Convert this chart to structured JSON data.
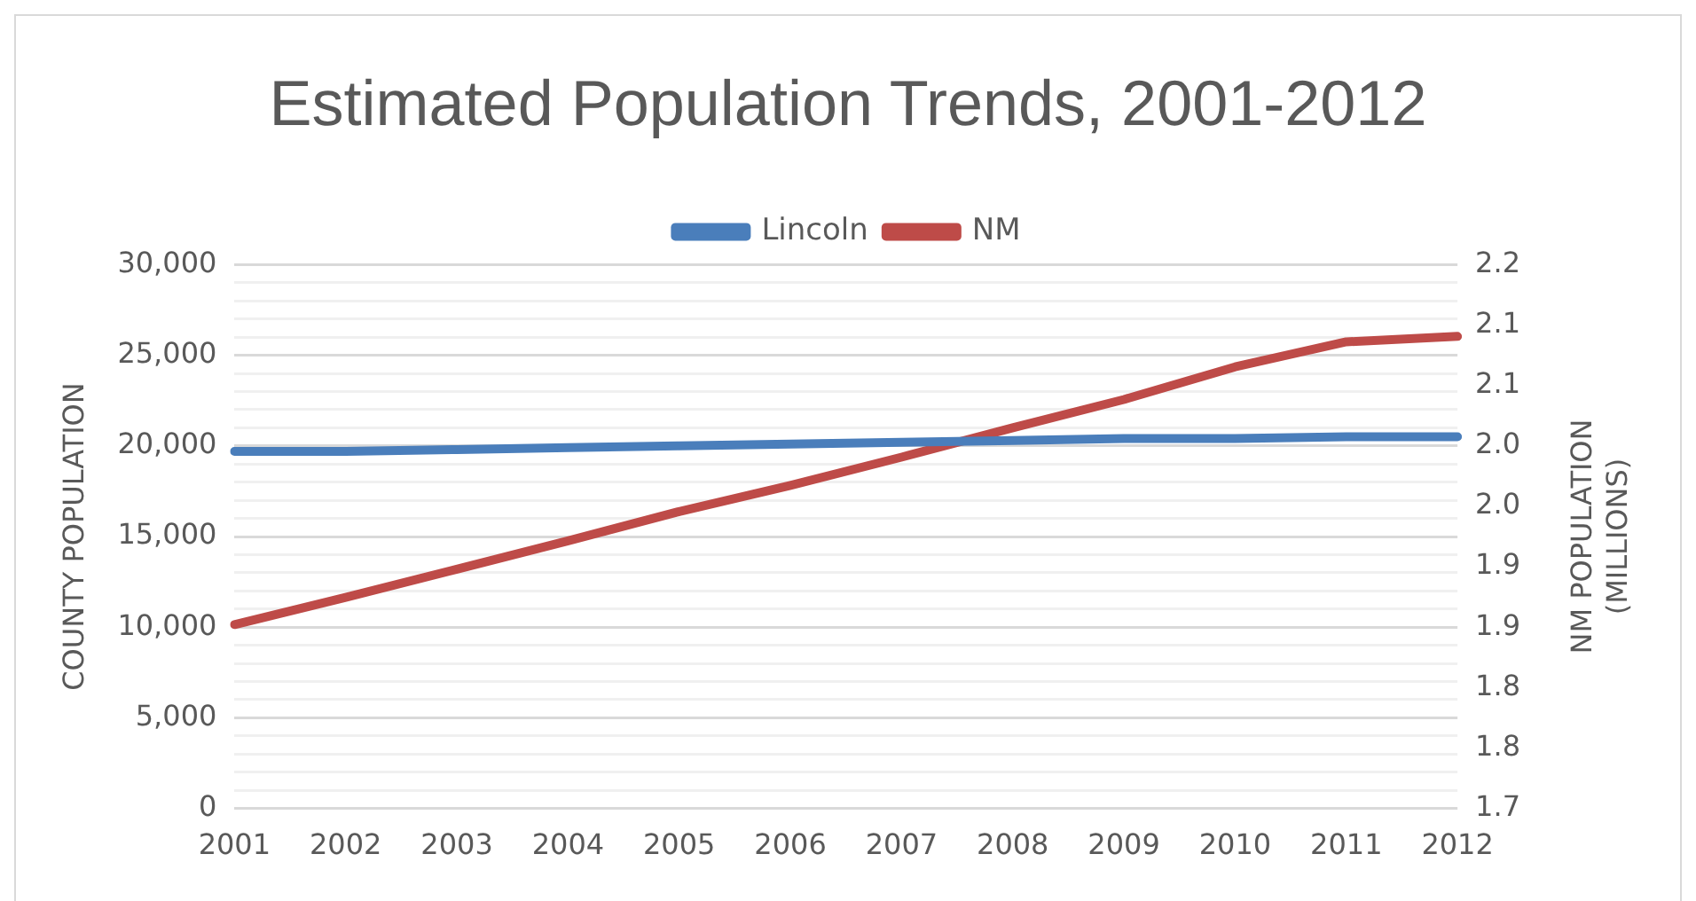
{
  "chart_data": {
    "type": "line",
    "title": "Estimated Population Trends, 2001-2012",
    "ylabel": "COUNTY POPULATION",
    "y2label": "NM POPULATION (MILLIONS)",
    "categories": [
      "2001",
      "2002",
      "2003",
      "2004",
      "2005",
      "2006",
      "2007",
      "2008",
      "2009",
      "2010",
      "2011",
      "2012"
    ],
    "series": [
      {
        "name": "Lincoln",
        "color": "#4a7ebb",
        "values": [
          19700,
          19700,
          19800,
          19900,
          20000,
          20100,
          20200,
          20300,
          20400,
          20400,
          20500,
          20500
        ]
      },
      {
        "name": "NM",
        "color": "#be4b48",
        "axis": "y2",
        "values": [
          1.869,
          1.894,
          1.92,
          1.946,
          1.973,
          1.997,
          2.023,
          2.05,
          2.076,
          2.106,
          2.129,
          2.134
        ]
      }
    ],
    "ylim": [
      0,
      30000
    ],
    "yticks": [
      0,
      {
        "value": 1000,
        "label": null
      },
      {
        "value": 2000,
        "label": null
      },
      {
        "value": 3000,
        "label": null
      },
      {
        "value": 4000,
        "label": null
      },
      {
        "value": 5000,
        "label": "5,000"
      },
      {
        "value": 6000,
        "label": null
      },
      {
        "value": 7000,
        "label": null
      },
      {
        "value": 8000,
        "label": null
      },
      {
        "value": 9000,
        "label": null
      },
      {
        "value": 10000,
        "label": "10,000"
      },
      {
        "value": 11000,
        "label": null
      },
      {
        "value": 12000,
        "label": null
      },
      {
        "value": 13000,
        "label": null
      },
      {
        "value": 14000,
        "label": null
      },
      {
        "value": 15000,
        "label": "15,000"
      },
      {
        "value": 16000,
        "label": null
      },
      {
        "value": 17000,
        "label": null
      },
      {
        "value": 18000,
        "label": null
      },
      {
        "value": 19000,
        "label": null
      },
      {
        "value": 20000,
        "label": "20,000"
      },
      {
        "value": 21000,
        "label": null
      },
      {
        "value": 22000,
        "label": null
      },
      {
        "value": 23000,
        "label": null
      },
      {
        "value": 24000,
        "label": null
      },
      {
        "value": 25000,
        "label": "25,000"
      },
      {
        "value": 26000,
        "label": null
      },
      {
        "value": 27000,
        "label": null
      },
      {
        "value": 28000,
        "label": null
      },
      {
        "value": 29000,
        "label": null
      },
      {
        "value": 30000,
        "label": "30,000"
      }
    ],
    "y2lim": [
      1.7,
      2.2
    ],
    "y2ticks": [
      1.7,
      {
        "value": 1.75556,
        "label": "1.8"
      },
      {
        "value": 1.81111,
        "label": "1.8"
      },
      {
        "value": 1.86667,
        "label": "1.9"
      },
      {
        "value": 1.92222,
        "label": "1.9"
      },
      {
        "value": 1.97778,
        "label": "2.0"
      },
      {
        "value": 2.03333,
        "label": "2.0"
      },
      {
        "value": 2.08889,
        "label": "2.1"
      },
      {
        "value": 2.14444,
        "label": "2.1"
      },
      2.2
    ],
    "grid": "y",
    "legend": "top",
    "marker": "none",
    "line_style": "solid"
  }
}
